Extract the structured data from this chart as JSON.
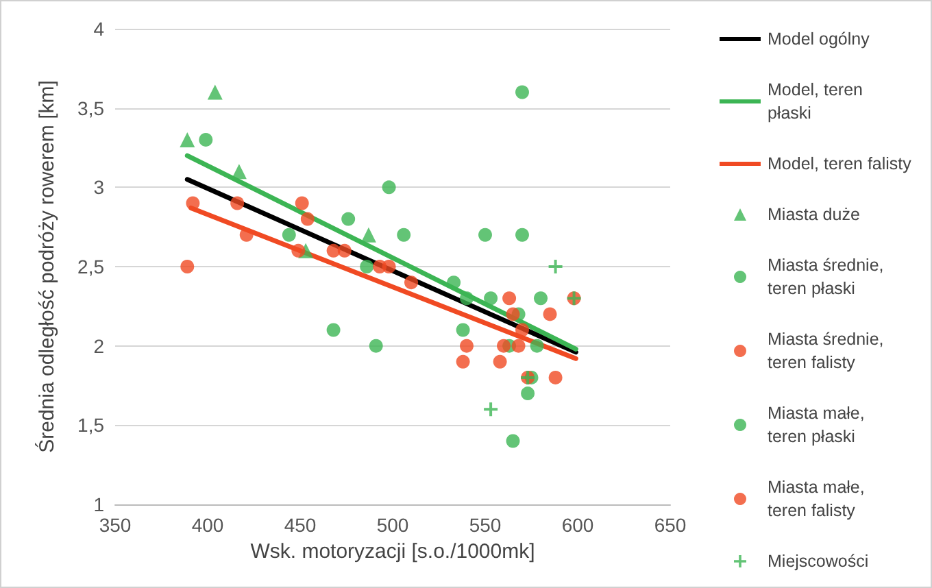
{
  "chart_data": {
    "type": "scatter",
    "xlabel": "Wsk. motoryzacji [s.o./1000mk]",
    "ylabel": "Średnia odległość podróży rowerem [km]",
    "xlim": [
      350,
      650
    ],
    "xticks": [
      350,
      400,
      450,
      500,
      550,
      600,
      650
    ],
    "ylim": [
      1,
      4
    ],
    "yticks": [
      1,
      {
        "value": 1.5,
        "label": "1,5"
      },
      2,
      {
        "value": 2.5,
        "label": "2,5"
      },
      3,
      {
        "value": 3.5,
        "label": "3,5"
      },
      4
    ],
    "grid": "y",
    "legend": "right",
    "series": [
      {
        "name": "Model ogólny",
        "type": "line",
        "marker": "none",
        "color": "#000000",
        "x": [
          389,
          599
        ],
        "values": [
          3.05,
          1.96
        ]
      },
      {
        "name": "Model, teren płaski",
        "type": "line",
        "marker": "none",
        "color": "#3cb554",
        "x": [
          389,
          599
        ],
        "values": [
          3.2,
          1.98
        ]
      },
      {
        "name": "Model, teren falisty",
        "type": "line",
        "marker": "none",
        "color": "#f04a23",
        "x": [
          391,
          599
        ],
        "values": [
          2.87,
          1.92
        ]
      },
      {
        "name": "Miasta duże",
        "marker": "triangle",
        "color": "#3cb554",
        "x": [
          389,
          404,
          417,
          453,
          487
        ],
        "values": [
          3.3,
          3.6,
          3.1,
          2.6,
          2.7
        ]
      },
      {
        "name": "Miasta średnie, teren płaski",
        "marker": "circle",
        "color": "#3cb554",
        "x": [
          399,
          444,
          476,
          498,
          506,
          486,
          468,
          491,
          550,
          570,
          533,
          568
        ],
        "values": [
          3.3,
          2.7,
          2.8,
          3.0,
          2.7,
          2.5,
          2.1,
          2.0,
          2.7,
          2.7,
          2.4,
          2.2
        ]
      },
      {
        "name": "Miasta średnie, teren falisty",
        "marker": "circle",
        "color": "#f04a23",
        "x": [
          389,
          392,
          416,
          421,
          451,
          454,
          449,
          468,
          474,
          493,
          498
        ],
        "values": [
          2.5,
          2.9,
          2.9,
          2.7,
          2.9,
          2.8,
          2.6,
          2.6,
          2.6,
          2.5,
          2.5
        ]
      },
      {
        "name": "Miasta małe, teren płaski",
        "marker": "circle",
        "color": "#3cb554",
        "x": [
          570,
          540,
          553,
          580,
          538,
          563,
          578,
          575,
          573,
          565
        ],
        "values": [
          3.6,
          2.3,
          2.3,
          2.3,
          2.1,
          2.0,
          2.0,
          1.8,
          1.7,
          1.4
        ]
      },
      {
        "name": "Miasta małe, teren falisty",
        "marker": "circle",
        "color": "#f04a23",
        "x": [
          563,
          565,
          585,
          570,
          540,
          560,
          568,
          538,
          558,
          588,
          573,
          598,
          510
        ],
        "values": [
          2.3,
          2.2,
          2.2,
          2.1,
          2.0,
          2.0,
          2.0,
          1.9,
          1.9,
          1.8,
          1.8,
          2.3,
          2.4
        ]
      },
      {
        "name": "Miejscowości",
        "marker": "cross",
        "color": "#3cb554",
        "x": [
          588,
          553,
          573,
          598
        ],
        "values": [
          2.5,
          1.6,
          1.8,
          2.3
        ]
      }
    ]
  }
}
